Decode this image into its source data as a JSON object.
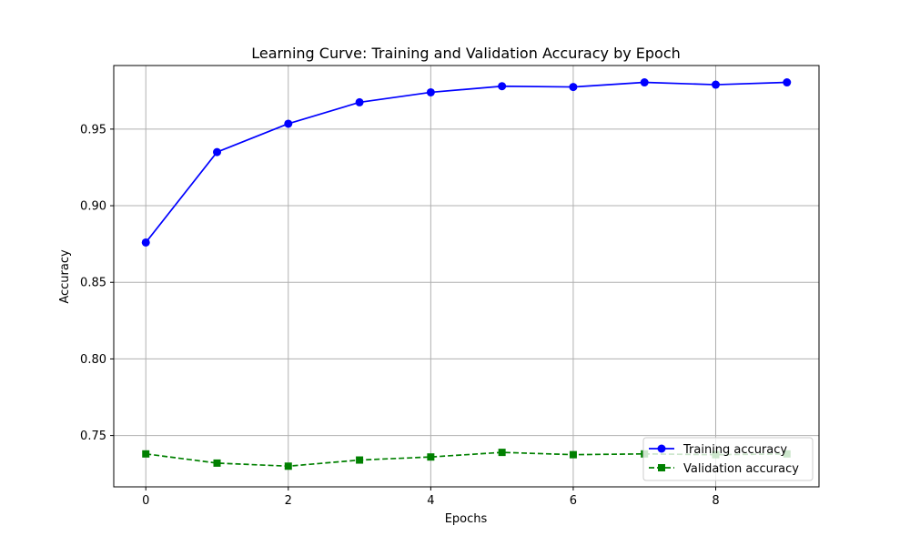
{
  "chart_data": {
    "type": "line",
    "title": "Learning Curve: Training and Validation Accuracy by Epoch",
    "xlabel": "Epochs",
    "ylabel": "Accuracy",
    "x": [
      0,
      1,
      2,
      3,
      4,
      5,
      6,
      7,
      8,
      9
    ],
    "xlim": [
      -0.45,
      9.45
    ],
    "ylim": [
      0.7165,
      0.9915
    ],
    "xticks": [
      0,
      2,
      4,
      6,
      8
    ],
    "yticks": [
      0.75,
      0.8,
      0.85,
      0.9,
      0.95
    ],
    "xtick_labels": [
      "0",
      "2",
      "4",
      "6",
      "8"
    ],
    "ytick_labels": [
      "0.75",
      "0.80",
      "0.85",
      "0.90",
      "0.95"
    ],
    "grid": true,
    "legend_position": "lower-right",
    "series": [
      {
        "name": "Training accuracy",
        "color": "#0000ff",
        "marker": "circle",
        "linestyle": "solid",
        "values": [
          0.876,
          0.935,
          0.9535,
          0.9675,
          0.974,
          0.978,
          0.9775,
          0.9805,
          0.979,
          0.9805
        ]
      },
      {
        "name": "Validation accuracy",
        "color": "#008000",
        "marker": "square",
        "linestyle": "dashed",
        "values": [
          0.738,
          0.732,
          0.73,
          0.734,
          0.736,
          0.739,
          0.7375,
          0.738,
          0.7375,
          0.738
        ]
      }
    ]
  }
}
